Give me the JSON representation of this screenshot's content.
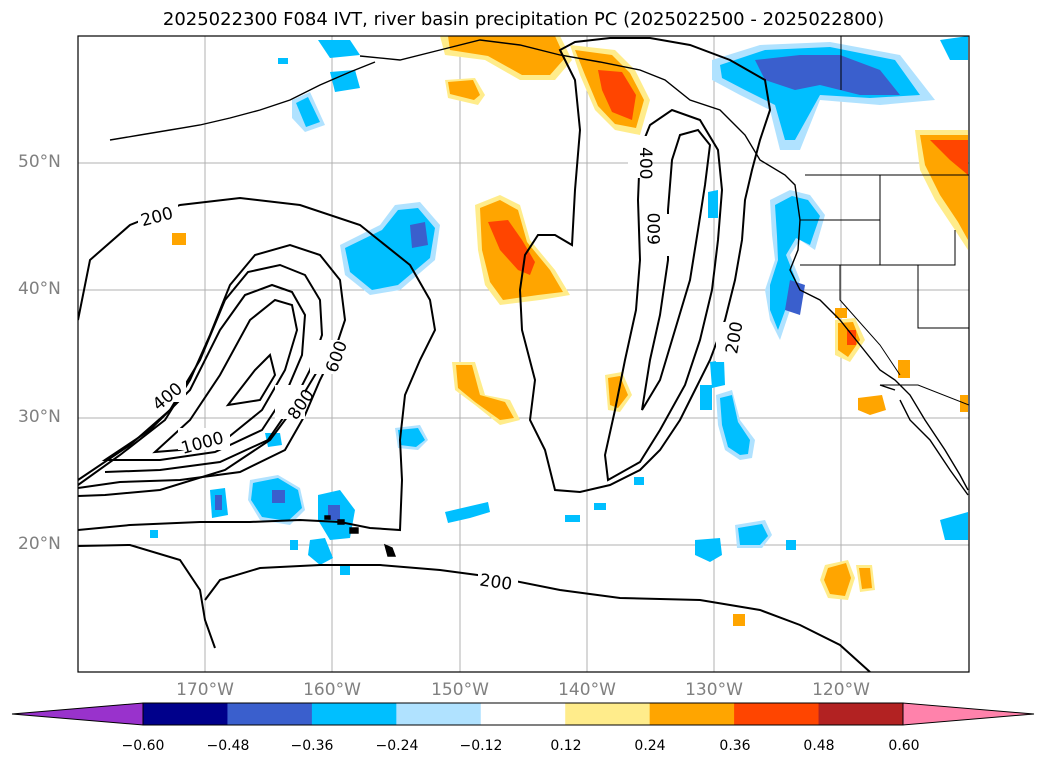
{
  "title": "2025022300 F084 IVT, river basin precipitation PC (2025022500 - 2025022800)",
  "lat_labels": [
    "50°N",
    "40°N",
    "30°N",
    "20°N"
  ],
  "lon_labels": [
    "170°W",
    "160°W",
    "150°W",
    "140°W",
    "130°W",
    "120°W"
  ],
  "contour_labels": [
    "200",
    "400",
    "600",
    "800",
    "1000",
    "400",
    "600",
    "200",
    "200"
  ],
  "colorbar": {
    "ticks": [
      "−0.60",
      "−0.48",
      "−0.36",
      "−0.24",
      "−0.12",
      "0.12",
      "0.24",
      "0.36",
      "0.48",
      "0.60"
    ],
    "colors": [
      "#9932cc",
      "#00008b",
      "#3a5fcd",
      "#00bfff",
      "#b0e2ff",
      "#ffffff",
      "#ffec8b",
      "#ffa500",
      "#ff4500",
      "#b22222",
      "#ff82ab"
    ]
  }
}
